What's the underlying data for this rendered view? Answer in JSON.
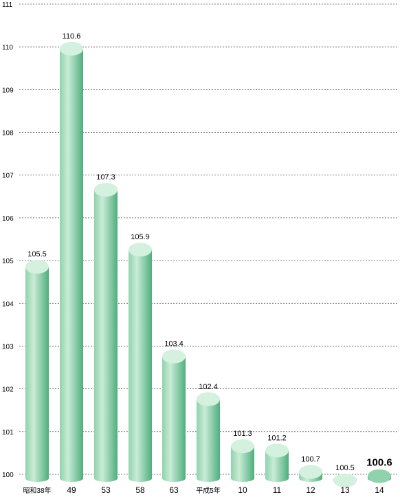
{
  "chart_data": {
    "type": "bar",
    "categories": [
      "昭和38年",
      "49",
      "53",
      "58",
      "63",
      "平成5年",
      "10",
      "11",
      "12",
      "13",
      "14"
    ],
    "values": [
      105.5,
      110.6,
      107.3,
      105.9,
      103.4,
      102.4,
      101.3,
      101.2,
      100.7,
      100.5,
      100.6
    ],
    "data_labels": [
      "105.5",
      "110.6",
      "107.3",
      "105.9",
      "103.4",
      "102.4",
      "101.3",
      "101.2",
      "100.7",
      "100.5",
      "100.6"
    ],
    "y_ticks": [
      "100",
      "101",
      "102",
      "103",
      "104",
      "105",
      "106",
      "107",
      "108",
      "109",
      "110",
      "111"
    ],
    "ylim": [
      100,
      111
    ],
    "grid": true,
    "highlight_index": 10,
    "colors": {
      "bar_light": "#c9ecd6",
      "bar_mid": "#8fd3ac",
      "bar_dark": "#4fae7d",
      "top_fill": "#d4f0de",
      "highlight_light": "#7fcaa2",
      "highlight_mid": "#4fae7d",
      "highlight_dark": "#2f8f5d",
      "highlight_top": "#8fd3ac",
      "grid": "#555555"
    }
  }
}
